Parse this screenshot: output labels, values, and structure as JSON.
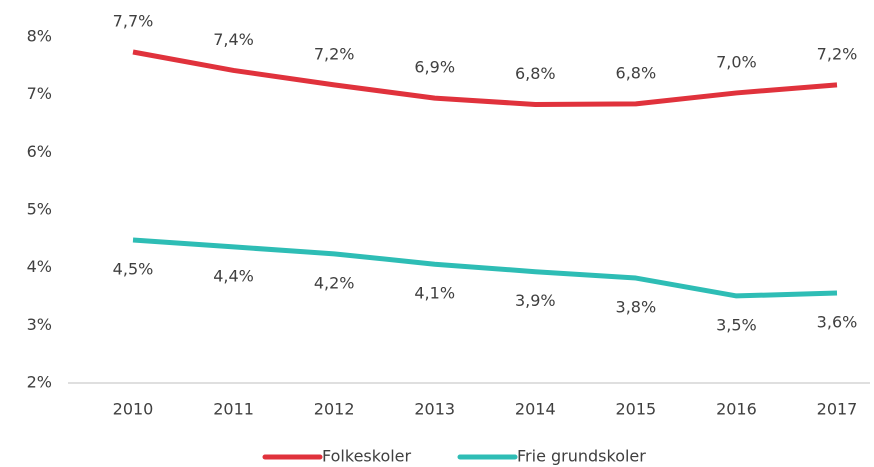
{
  "chart_data": {
    "type": "line",
    "categories": [
      "2010",
      "2011",
      "2012",
      "2013",
      "2014",
      "2015",
      "2016",
      "2017"
    ],
    "series": [
      {
        "name": "Folkeskoler",
        "color": "#e0323c",
        "values": [
          7.74,
          7.42,
          7.17,
          6.94,
          6.83,
          6.84,
          7.03,
          7.17
        ],
        "value_labels": [
          "7,7%",
          "7,4%",
          "7,2%",
          "6,9%",
          "6,8%",
          "6,8%",
          "7,0%",
          "7,2%"
        ]
      },
      {
        "name": "Frie grundskoler",
        "color": "#2ebdb5",
        "values": [
          4.48,
          4.36,
          4.24,
          4.06,
          3.93,
          3.82,
          3.51,
          3.56
        ],
        "value_labels": [
          "4,5%",
          "4,4%",
          "4,2%",
          "4,1%",
          "3,9%",
          "3,8%",
          "3,5%",
          "3,6%"
        ]
      }
    ],
    "ylim": [
      2,
      8
    ],
    "yticks": [
      {
        "value": 2,
        "label": "2%"
      },
      {
        "value": 3,
        "label": "3%"
      },
      {
        "value": 4,
        "label": "4%"
      },
      {
        "value": 5,
        "label": "5%"
      },
      {
        "value": 6,
        "label": "6%"
      },
      {
        "value": 7,
        "label": "7%"
      },
      {
        "value": 8,
        "label": "8%"
      }
    ],
    "grid": false,
    "legend": "bottom"
  }
}
